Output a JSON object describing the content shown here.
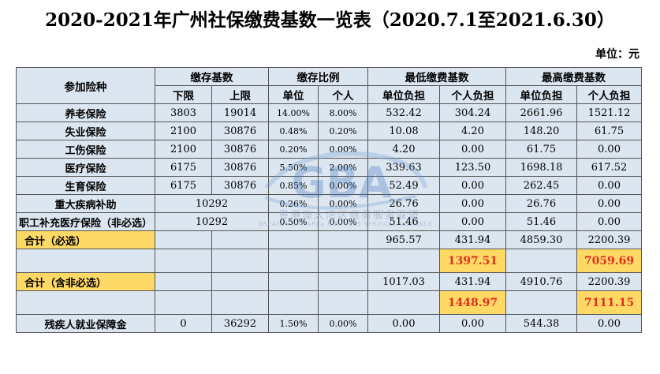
{
  "title": "2020-2021年广州社保缴费基数一览表（2020.7.1至2021.6.30）",
  "unit": "单位：元",
  "headers": {
    "insurance_type": "参加险种",
    "contribution_base": "缴存基数",
    "contribution_ratio": "缴存比例",
    "min_payment_base": "最低缴费基数",
    "max_payment_base": "最高缴费基数",
    "lower_limit": "下限",
    "upper_limit": "上限",
    "unit_col": "单位",
    "personal_col": "个人",
    "unit_burden": "单位负担",
    "personal_burden": "个人负担"
  },
  "rows": [
    {
      "name": "养老保险",
      "lower": "3803",
      "upper": "19014",
      "unit_rate": "14.00%",
      "personal_rate": "8.00%",
      "min_unit": "532.42",
      "min_personal": "304.24",
      "max_unit": "2661.96",
      "max_personal": "1521.12"
    },
    {
      "name": "失业保险",
      "lower": "2100",
      "upper": "30876",
      "unit_rate": "0.48%",
      "personal_rate": "0.20%",
      "min_unit": "10.08",
      "min_personal": "4.20",
      "max_unit": "148.20",
      "max_personal": "61.75"
    },
    {
      "name": "工伤保险",
      "lower": "2100",
      "upper": "30876",
      "unit_rate": "0.20%",
      "personal_rate": "0.00%",
      "min_unit": "4.20",
      "min_personal": "0.00",
      "max_unit": "61.75",
      "max_personal": "0.00"
    },
    {
      "name": "医疗保险",
      "lower": "6175",
      "upper": "30876",
      "unit_rate": "5.50%",
      "personal_rate": "2.00%",
      "min_unit": "339.63",
      "min_personal": "123.50",
      "max_unit": "1698.18",
      "max_personal": "617.52"
    },
    {
      "name": "生育保险",
      "lower": "6175",
      "upper": "30876",
      "unit_rate": "0.85%",
      "personal_rate": "0.00%",
      "min_unit": "52.49",
      "min_personal": "0.00",
      "max_unit": "262.45",
      "max_personal": "0.00"
    }
  ],
  "serious_illness": {
    "name": "重大疾病补助",
    "base": "10292",
    "unit_rate": "0.26%",
    "personal_rate": "0.00%",
    "min_unit": "26.76",
    "min_personal": "0.00",
    "max_unit": "26.76",
    "max_personal": "0.00"
  },
  "supplementary_medical": {
    "name": "职工补充医疗保险（非必选）",
    "base": "10292",
    "unit_rate": "0.50%",
    "personal_rate": "0.00%",
    "min_unit": "51.46",
    "min_personal": "0.00",
    "max_unit": "51.46",
    "max_personal": "0.00"
  },
  "total_required": {
    "label": "合计（必选）",
    "min_unit": "965.57",
    "min_personal": "431.94",
    "max_unit": "4859.30",
    "max_personal": "2200.39",
    "min_total": "1397.51",
    "max_total": "7059.69"
  },
  "total_with_optional": {
    "label": "合计（含非必选）",
    "min_unit": "1017.03",
    "min_personal": "431.94",
    "max_unit": "4910.76",
    "max_personal": "2200.39",
    "min_total": "1448.97",
    "max_total": "7111.15"
  },
  "disability": {
    "name": "残疾人就业保障金",
    "lower": "0",
    "upper": "36292",
    "unit_rate": "1.50%",
    "personal_rate": "0.00%",
    "min_unit": "0.00",
    "min_personal": "0.00",
    "max_unit": "544.38",
    "max_personal": "0.00"
  },
  "watermark": {
    "text": "粤港澳大湾区商务服务联盟",
    "sub": "GREATER BAY AREA BUSINESS SERVICES ALLIANCE",
    "logo": "GBA"
  },
  "colors": {
    "cell_bg": "#dce6f1",
    "highlight": "#ffd966",
    "total_text": "#e03020"
  }
}
